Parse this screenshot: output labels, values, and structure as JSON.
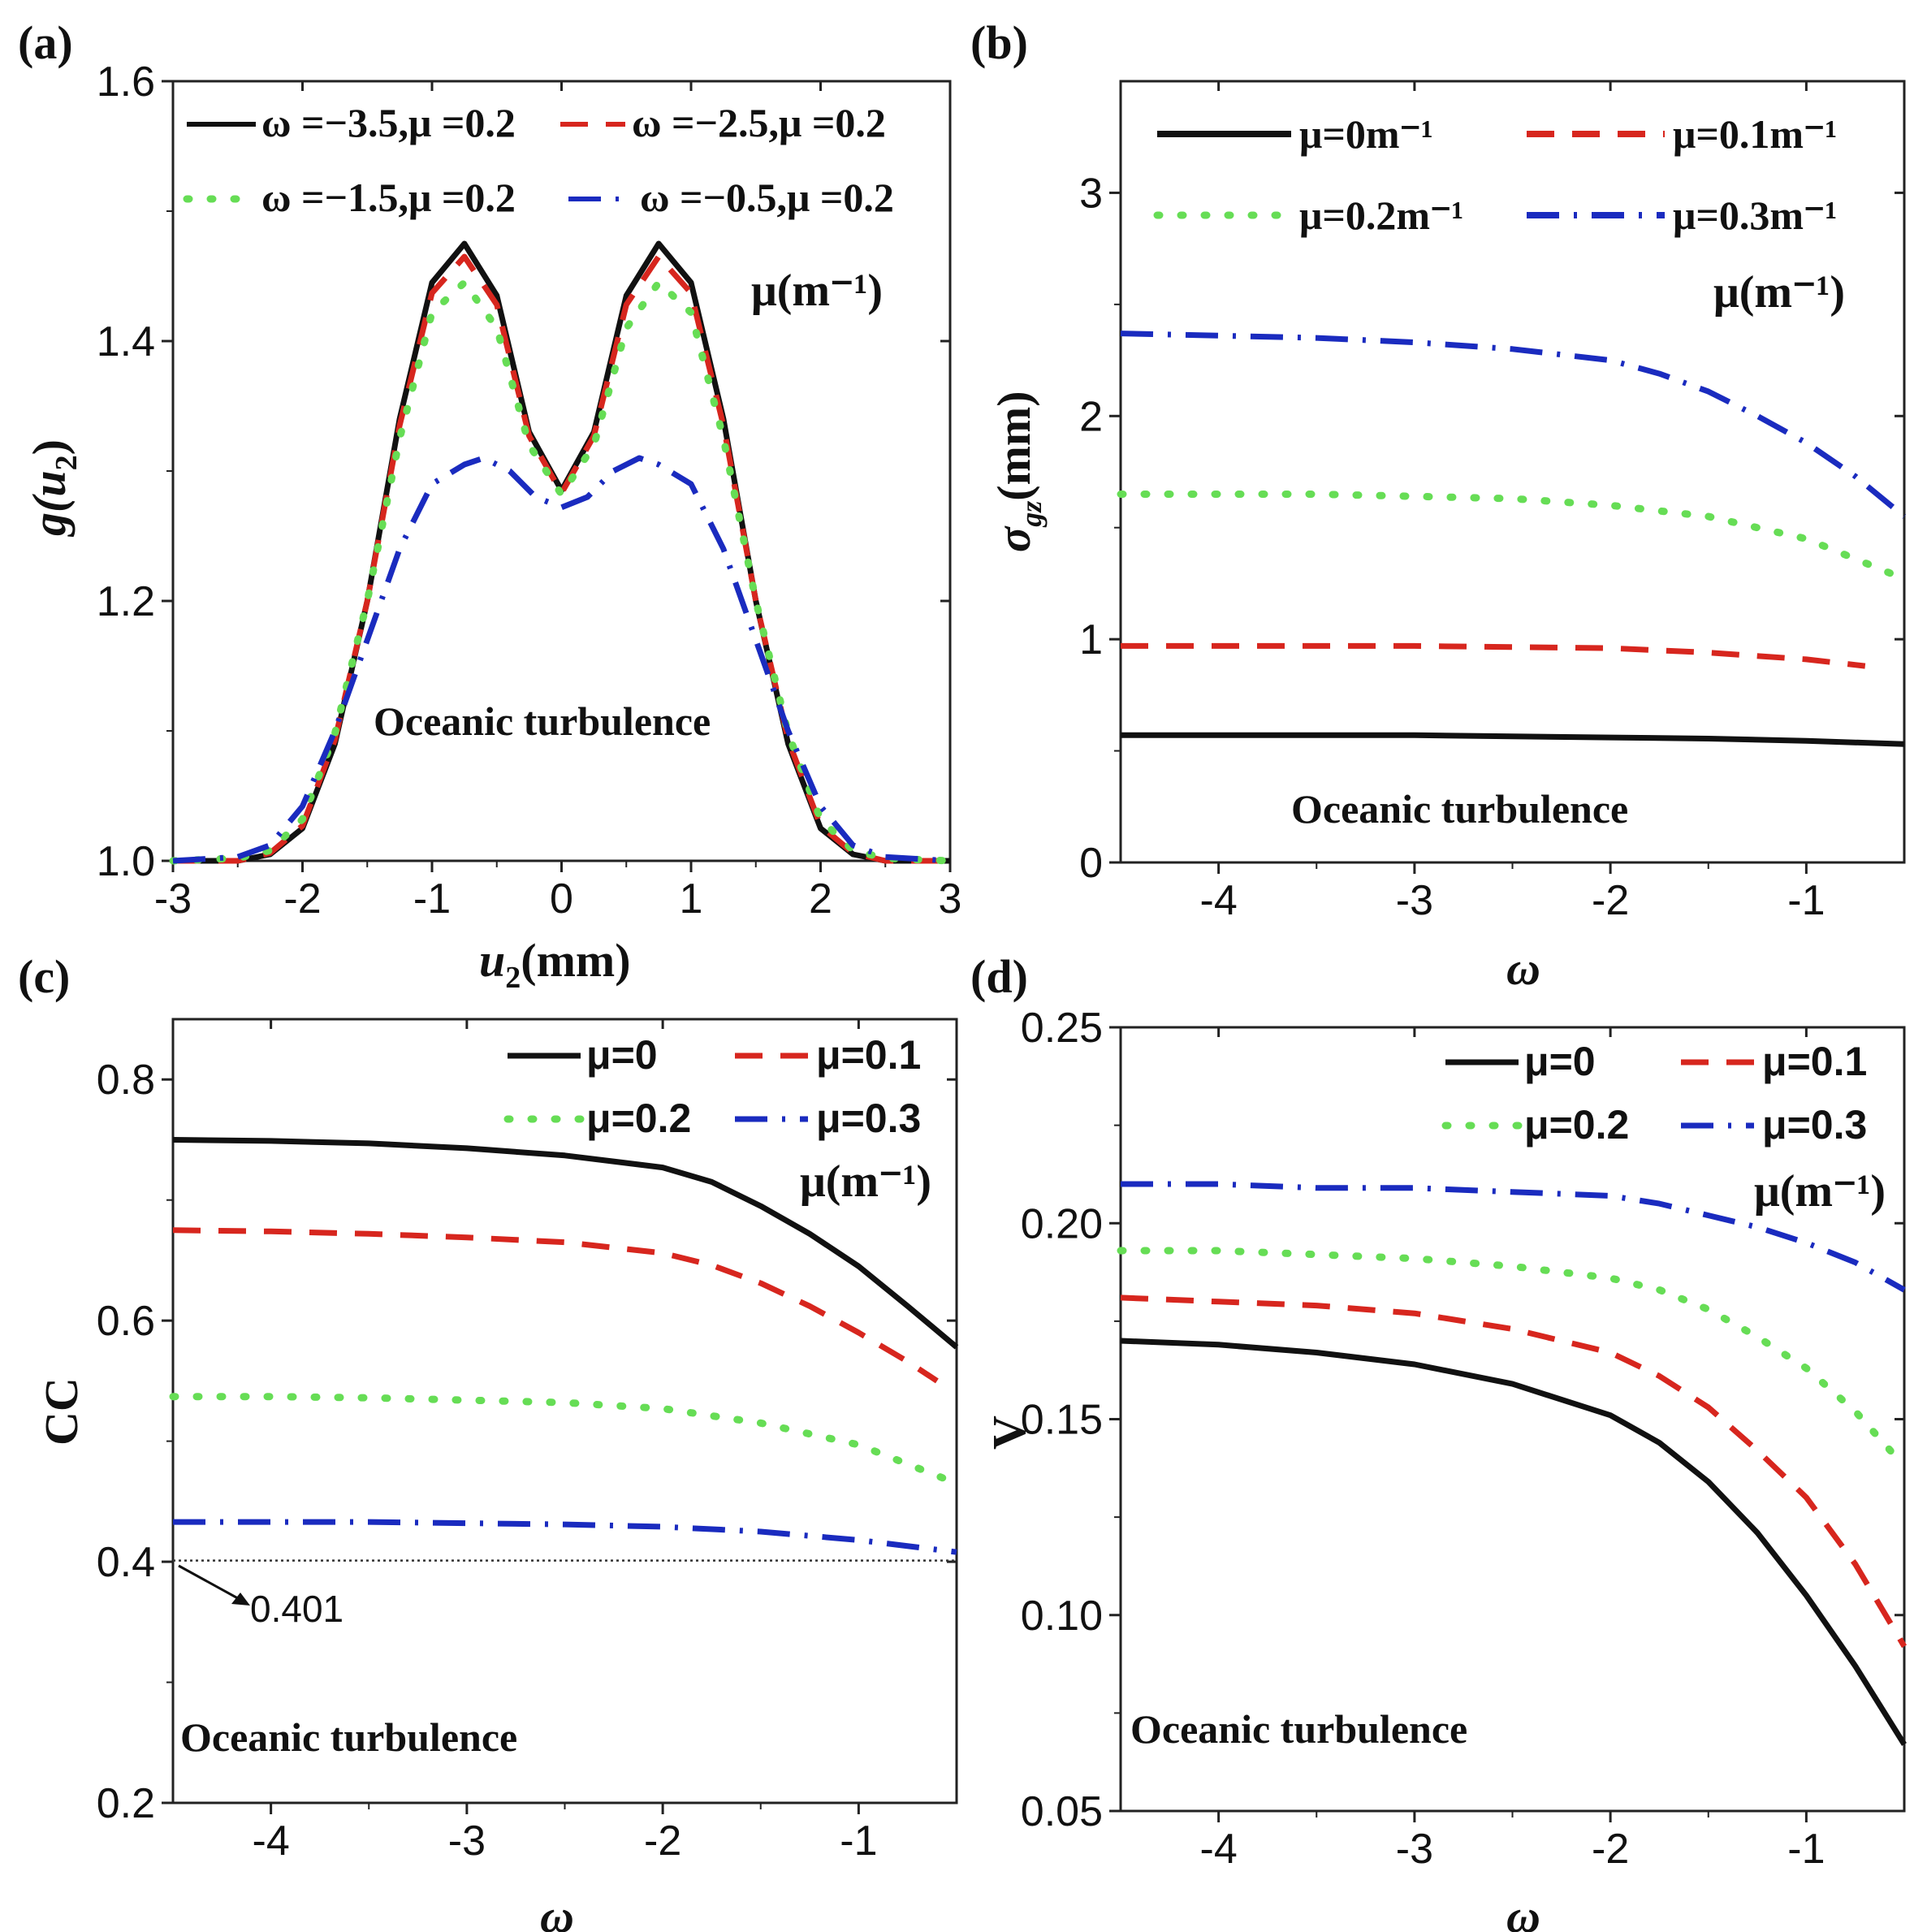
{
  "figure": {
    "colors": {
      "black": "#111111",
      "red": "#d7261e",
      "green": "#66dd55",
      "blue": "#1a2bbf"
    }
  },
  "chart_data": [
    {
      "id": "a",
      "panel_label": "(a)",
      "type": "line",
      "xlabel_main": "u",
      "xlabel_sub": "2",
      "xlabel_unit": "(mm)",
      "ylabel_main": "g(u",
      "ylabel_sub": "2",
      "ylabel_close": ")",
      "xlim": [
        -3,
        3
      ],
      "ylim": [
        1.0,
        1.6
      ],
      "xticks": [
        "-3",
        "-2",
        "-1",
        "0",
        "1",
        "2",
        "3"
      ],
      "yticks": [
        "1.0",
        "1.2",
        "1.4",
        "1.6"
      ],
      "annotation": "Oceanic turbulence",
      "unit_label": "μ(m⁻¹)",
      "series": [
        {
          "name": "ω =−3.5,μ =0.2",
          "color": "black",
          "style": "solid",
          "x": [
            -3,
            -2.5,
            -2.25,
            -2,
            -1.75,
            -1.5,
            -1.25,
            -1,
            -0.75,
            -0.5,
            -0.25,
            0,
            0.25,
            0.5,
            0.75,
            1,
            1.25,
            1.5,
            1.75,
            2,
            2.25,
            2.5,
            3
          ],
          "y": [
            1.0,
            1.0,
            1.005,
            1.025,
            1.09,
            1.2,
            1.34,
            1.445,
            1.475,
            1.435,
            1.33,
            1.285,
            1.33,
            1.435,
            1.475,
            1.445,
            1.34,
            1.2,
            1.09,
            1.025,
            1.005,
            1.0,
            1.0
          ]
        },
        {
          "name": "ω =−2.5,μ =0.2",
          "color": "red",
          "style": "dashed",
          "x": [
            -3,
            -2.5,
            -2.25,
            -2,
            -1.75,
            -1.5,
            -1.25,
            -1,
            -0.75,
            -0.5,
            -0.25,
            0,
            0.25,
            0.5,
            0.75,
            1,
            1.25,
            1.5,
            1.75,
            2,
            2.25,
            2.5,
            3
          ],
          "y": [
            1.0,
            1.0,
            1.006,
            1.027,
            1.093,
            1.2,
            1.335,
            1.437,
            1.465,
            1.428,
            1.327,
            1.283,
            1.327,
            1.428,
            1.465,
            1.437,
            1.335,
            1.2,
            1.093,
            1.027,
            1.006,
            1.0,
            1.0
          ]
        },
        {
          "name": "ω =−1.5,μ =0.2",
          "color": "green",
          "style": "dotted",
          "x": [
            -3,
            -2.5,
            -2.25,
            -2,
            -1.75,
            -1.5,
            -1.25,
            -1,
            -0.75,
            -0.5,
            -0.25,
            0,
            0.25,
            0.5,
            0.75,
            1,
            1.25,
            1.5,
            1.75,
            2,
            2.25,
            2.5,
            3
          ],
          "y": [
            1.0,
            1.002,
            1.008,
            1.032,
            1.098,
            1.2,
            1.325,
            1.422,
            1.445,
            1.41,
            1.32,
            1.282,
            1.32,
            1.41,
            1.445,
            1.422,
            1.325,
            1.2,
            1.098,
            1.032,
            1.008,
            1.002,
            1.0
          ]
        },
        {
          "name": "ω =−0.5,μ =0.2",
          "color": "blue",
          "style": "dashdot",
          "x": [
            -3,
            -2.5,
            -2.25,
            -2,
            -1.75,
            -1.5,
            -1.25,
            -1,
            -0.75,
            -0.6,
            -0.4,
            -0.2,
            0,
            0.2,
            0.4,
            0.6,
            0.75,
            1,
            1.25,
            1.5,
            1.75,
            2,
            2.25,
            2.5,
            3
          ],
          "y": [
            1.0,
            1.003,
            1.012,
            1.042,
            1.1,
            1.17,
            1.24,
            1.29,
            1.305,
            1.31,
            1.3,
            1.28,
            1.272,
            1.28,
            1.3,
            1.31,
            1.305,
            1.29,
            1.24,
            1.17,
            1.1,
            1.042,
            1.012,
            1.003,
            1.0
          ]
        }
      ]
    },
    {
      "id": "b",
      "panel_label": "(b)",
      "type": "line",
      "xlabel_main": "ω",
      "ylabel_main": "σ",
      "ylabel_sub": "gz",
      "ylabel_unit": "(mm)",
      "xlim": [
        -4.5,
        -0.5
      ],
      "ylim": [
        0,
        3.5
      ],
      "xticks": [
        "-4",
        "-3",
        "-2",
        "-1"
      ],
      "yticks": [
        "0",
        "1",
        "2",
        "3"
      ],
      "annotation": "Oceanic turbulence",
      "unit_label": "μ(m⁻¹)",
      "series": [
        {
          "name": "μ=0m⁻¹",
          "color": "black",
          "style": "solid",
          "x": [
            -4.5,
            -4,
            -3.5,
            -3,
            -2.5,
            -2,
            -1.5,
            -1,
            -0.5
          ],
          "y": [
            0.57,
            0.57,
            0.57,
            0.57,
            0.565,
            0.56,
            0.555,
            0.545,
            0.53
          ]
        },
        {
          "name": "μ=0.1m⁻¹",
          "color": "red",
          "style": "dashed",
          "x": [
            -4.5,
            -4,
            -3.5,
            -3,
            -2.5,
            -2,
            -1.5,
            -1,
            -0.7
          ],
          "y": [
            0.97,
            0.97,
            0.97,
            0.97,
            0.965,
            0.96,
            0.94,
            0.91,
            0.88
          ]
        },
        {
          "name": "μ=0.2m⁻¹",
          "color": "green",
          "style": "dotted",
          "x": [
            -4.5,
            -4,
            -3.5,
            -3,
            -2.5,
            -2,
            -1.5,
            -1,
            -0.5
          ],
          "y": [
            1.65,
            1.65,
            1.65,
            1.64,
            1.63,
            1.6,
            1.55,
            1.45,
            1.27
          ]
        },
        {
          "name": "μ=0.3m⁻¹",
          "color": "blue",
          "style": "dashdot",
          "x": [
            -4.5,
            -4,
            -3.5,
            -3,
            -2.5,
            -2,
            -1.75,
            -1.5,
            -1.25,
            -1,
            -0.75,
            -0.5
          ],
          "y": [
            2.37,
            2.36,
            2.35,
            2.33,
            2.3,
            2.25,
            2.19,
            2.11,
            2.0,
            1.88,
            1.73,
            1.55
          ]
        }
      ]
    },
    {
      "id": "c",
      "panel_label": "(c)",
      "type": "line",
      "xlabel_main": "ω",
      "ylabel_main": "CC",
      "xlim": [
        -4.5,
        -0.5
      ],
      "ylim": [
        0.2,
        0.85
      ],
      "xticks": [
        "-4",
        "-3",
        "-2",
        "-1"
      ],
      "yticks": [
        "0.2",
        "0.4",
        "0.6",
        "0.8"
      ],
      "annotation": "Oceanic turbulence",
      "unit_label": "μ(m⁻¹)",
      "reference_value": 0.401,
      "reference_label": "0.401",
      "series": [
        {
          "name": "μ=0",
          "color": "black",
          "style": "solid",
          "x": [
            -4.5,
            -4,
            -3.5,
            -3,
            -2.5,
            -2,
            -1.75,
            -1.5,
            -1.25,
            -1,
            -0.75,
            -0.5
          ],
          "y": [
            0.75,
            0.749,
            0.747,
            0.743,
            0.737,
            0.727,
            0.715,
            0.695,
            0.672,
            0.645,
            0.612,
            0.578
          ]
        },
        {
          "name": "μ=0.1",
          "color": "red",
          "style": "dashed",
          "x": [
            -4.5,
            -4,
            -3.5,
            -3,
            -2.5,
            -2,
            -1.75,
            -1.5,
            -1.25,
            -1,
            -0.75,
            -0.6
          ],
          "y": [
            0.675,
            0.674,
            0.672,
            0.669,
            0.665,
            0.656,
            0.646,
            0.631,
            0.612,
            0.59,
            0.566,
            0.55
          ]
        },
        {
          "name": "μ=0.2",
          "color": "green",
          "style": "dotted",
          "x": [
            -4.5,
            -4,
            -3.5,
            -3,
            -2.5,
            -2,
            -1.5,
            -1,
            -0.5
          ],
          "y": [
            0.537,
            0.537,
            0.536,
            0.534,
            0.532,
            0.527,
            0.515,
            0.497,
            0.465
          ]
        },
        {
          "name": "μ=0.3",
          "color": "blue",
          "style": "dashdot",
          "x": [
            -4.5,
            -4,
            -3.5,
            -3,
            -2.5,
            -2,
            -1.5,
            -1,
            -0.5
          ],
          "y": [
            0.433,
            0.433,
            0.433,
            0.432,
            0.431,
            0.429,
            0.425,
            0.418,
            0.408
          ]
        }
      ]
    },
    {
      "id": "d",
      "panel_label": "(d)",
      "type": "line",
      "xlabel_main": "ω",
      "ylabel_main": "V",
      "xlim": [
        -4.5,
        -0.5
      ],
      "ylim": [
        0.05,
        0.25
      ],
      "xticks": [
        "-4",
        "-3",
        "-2",
        "-1"
      ],
      "yticks": [
        "0.05",
        "0.10",
        "0.15",
        "0.20",
        "0.25"
      ],
      "annotation": "Oceanic turbulence",
      "unit_label": "μ(m⁻¹)",
      "series": [
        {
          "name": "μ=0",
          "color": "black",
          "style": "solid",
          "x": [
            -4.5,
            -4,
            -3.5,
            -3,
            -2.5,
            -2,
            -1.75,
            -1.5,
            -1.25,
            -1,
            -0.75,
            -0.5
          ],
          "y": [
            0.17,
            0.169,
            0.167,
            0.164,
            0.159,
            0.151,
            0.144,
            0.134,
            0.121,
            0.105,
            0.087,
            0.067
          ]
        },
        {
          "name": "μ=0.1",
          "color": "red",
          "style": "dashed",
          "x": [
            -4.5,
            -4,
            -3.5,
            -3,
            -2.5,
            -2,
            -1.75,
            -1.5,
            -1.25,
            -1,
            -0.75,
            -0.5
          ],
          "y": [
            0.181,
            0.18,
            0.179,
            0.177,
            0.173,
            0.167,
            0.161,
            0.153,
            0.142,
            0.13,
            0.113,
            0.092
          ]
        },
        {
          "name": "μ=0.2",
          "color": "green",
          "style": "dotted",
          "x": [
            -4.5,
            -4,
            -3.5,
            -3,
            -2.5,
            -2,
            -1.75,
            -1.5,
            -1.25,
            -1,
            -0.75,
            -0.5
          ],
          "y": [
            0.193,
            0.193,
            0.192,
            0.191,
            0.189,
            0.186,
            0.183,
            0.178,
            0.171,
            0.163,
            0.152,
            0.138
          ]
        },
        {
          "name": "μ=0.3",
          "color": "blue",
          "style": "dashdot",
          "x": [
            -4.5,
            -4,
            -3.5,
            -3,
            -2.5,
            -2,
            -1.75,
            -1.5,
            -1.25,
            -1,
            -0.75,
            -0.5
          ],
          "y": [
            0.21,
            0.21,
            0.209,
            0.209,
            0.208,
            0.207,
            0.205,
            0.202,
            0.199,
            0.195,
            0.19,
            0.183
          ]
        }
      ]
    }
  ]
}
